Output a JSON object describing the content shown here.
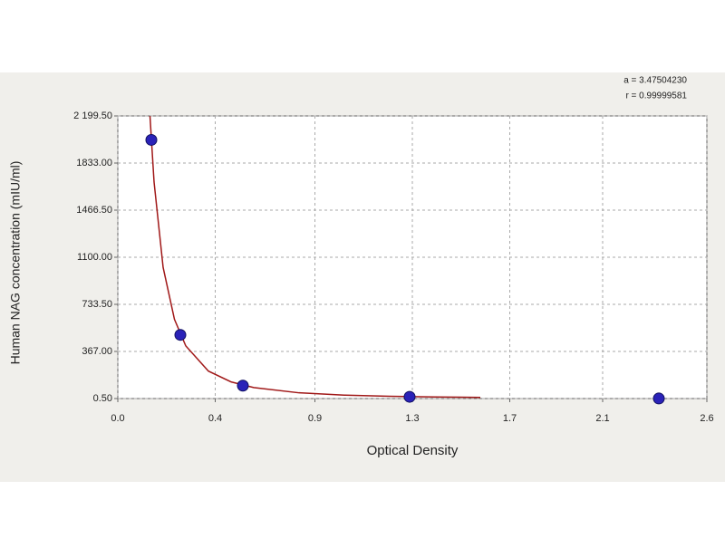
{
  "chart_data": {
    "type": "scatter",
    "x_label": "Optical Density",
    "y_label": "Human NAG concentration (mIU/ml)",
    "annotations": [
      "a = 3.47504230",
      "r = 0.99999581"
    ],
    "xlim": [
      0,
      2.6
    ],
    "xticks": [
      {
        "value": 0,
        "label": "0.0"
      },
      {
        "value": 0.43,
        "label": "0.4"
      },
      {
        "value": 0.87,
        "label": "0.9"
      },
      1.3,
      {
        "value": 1.73,
        "label": "1.7"
      },
      {
        "value": 2.14,
        "label": "2.1"
      },
      2.6
    ],
    "ylim": [
      0.5,
      2199.5
    ],
    "yticks": [
      {
        "value": 0.5,
        "label": "0.50"
      },
      {
        "value": 367,
        "label": "367.00"
      },
      {
        "value": 733.5,
        "label": "733.50"
      },
      {
        "value": 1100,
        "label": "1100.00"
      },
      {
        "value": 1466.5,
        "label": "1466.50"
      },
      {
        "value": 1833,
        "label": "1833.00"
      },
      {
        "value": 2199.5,
        "label": "2 199.50"
      }
    ],
    "grid": true,
    "series": [
      {
        "mode": "line",
        "color": "#a01818",
        "x": [
          0.142,
          0.16,
          0.2,
          0.25,
          0.3,
          0.4,
          0.5,
          0.6,
          0.8,
          1.0,
          1.2,
          1.4,
          1.6
        ],
        "values": [
          2199,
          1685,
          1021,
          617,
          410,
          214,
          130,
          86,
          45,
          27,
          18,
          12.8,
          9.5
        ]
      },
      {
        "mode": "markers",
        "color": "#2a22b8",
        "x": [
          0.148,
          0.276,
          0.552,
          1.288,
          2.388
        ],
        "values": [
          2013,
          496,
          101,
          14,
          1
        ]
      }
    ]
  }
}
